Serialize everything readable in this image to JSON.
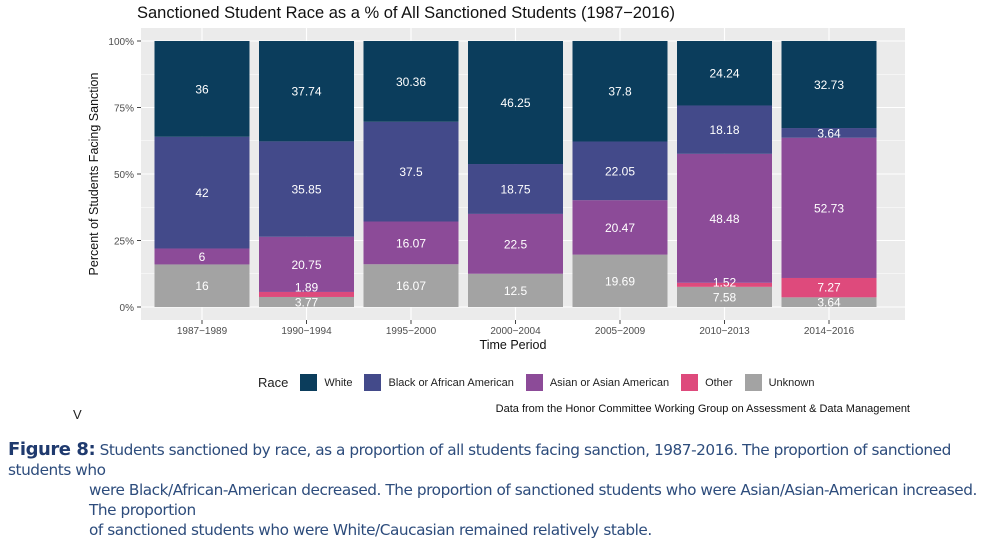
{
  "chart_data": {
    "type": "bar",
    "stacked": true,
    "title": "Sanctioned Student Race as a % of All Sanctioned Students (1987−2016)",
    "xlabel": "Time Period",
    "ylabel": "Percent of Students Facing Sanction",
    "ylim": [
      0,
      100
    ],
    "yticks": [
      "0%",
      "25%",
      "50%",
      "75%",
      "100%"
    ],
    "grid": true,
    "legend_title": "Race",
    "legend_position": "bottom",
    "categories": [
      "1987−1989",
      "1990−1994",
      "1995−2000",
      "2000−2004",
      "2005−2009",
      "2010−2013",
      "2014−2016"
    ],
    "series": [
      {
        "name": "White",
        "color": "#0b3d5c",
        "values": [
          36,
          37.74,
          30.36,
          46.25,
          37.8,
          24.24,
          32.73
        ]
      },
      {
        "name": "Black or African American",
        "color": "#434a8a",
        "values": [
          42,
          35.85,
          37.5,
          18.75,
          22.05,
          18.18,
          3.64
        ]
      },
      {
        "name": "Asian or Asian American",
        "color": "#8c4b98",
        "values": [
          6,
          20.75,
          16.07,
          22.5,
          20.47,
          48.48,
          52.73
        ]
      },
      {
        "name": "Other",
        "color": "#de4a7c",
        "values": [
          0,
          1.89,
          0,
          0,
          0,
          1.52,
          7.27
        ]
      },
      {
        "name": "Unknown",
        "color": "#a3a3a3",
        "values": [
          16,
          3.77,
          16.07,
          12.5,
          19.69,
          7.58,
          3.64
        ]
      }
    ]
  },
  "source_note": "Data from the Honor Committee Working Group on Assessment & Data Management",
  "stray_mark": "V",
  "caption": {
    "label": "Figure 8:",
    "line1": "Students sanctioned by race, as a proportion of all students facing sanction, 1987-2016.  The proportion of sanctioned students who",
    "line2": "were Black/African-American decreased.  The proportion of sanctioned students who were Asian/Asian-American increased.  The proportion",
    "line3": "of sanctioned students who were White/Caucasian remained relatively stable."
  }
}
